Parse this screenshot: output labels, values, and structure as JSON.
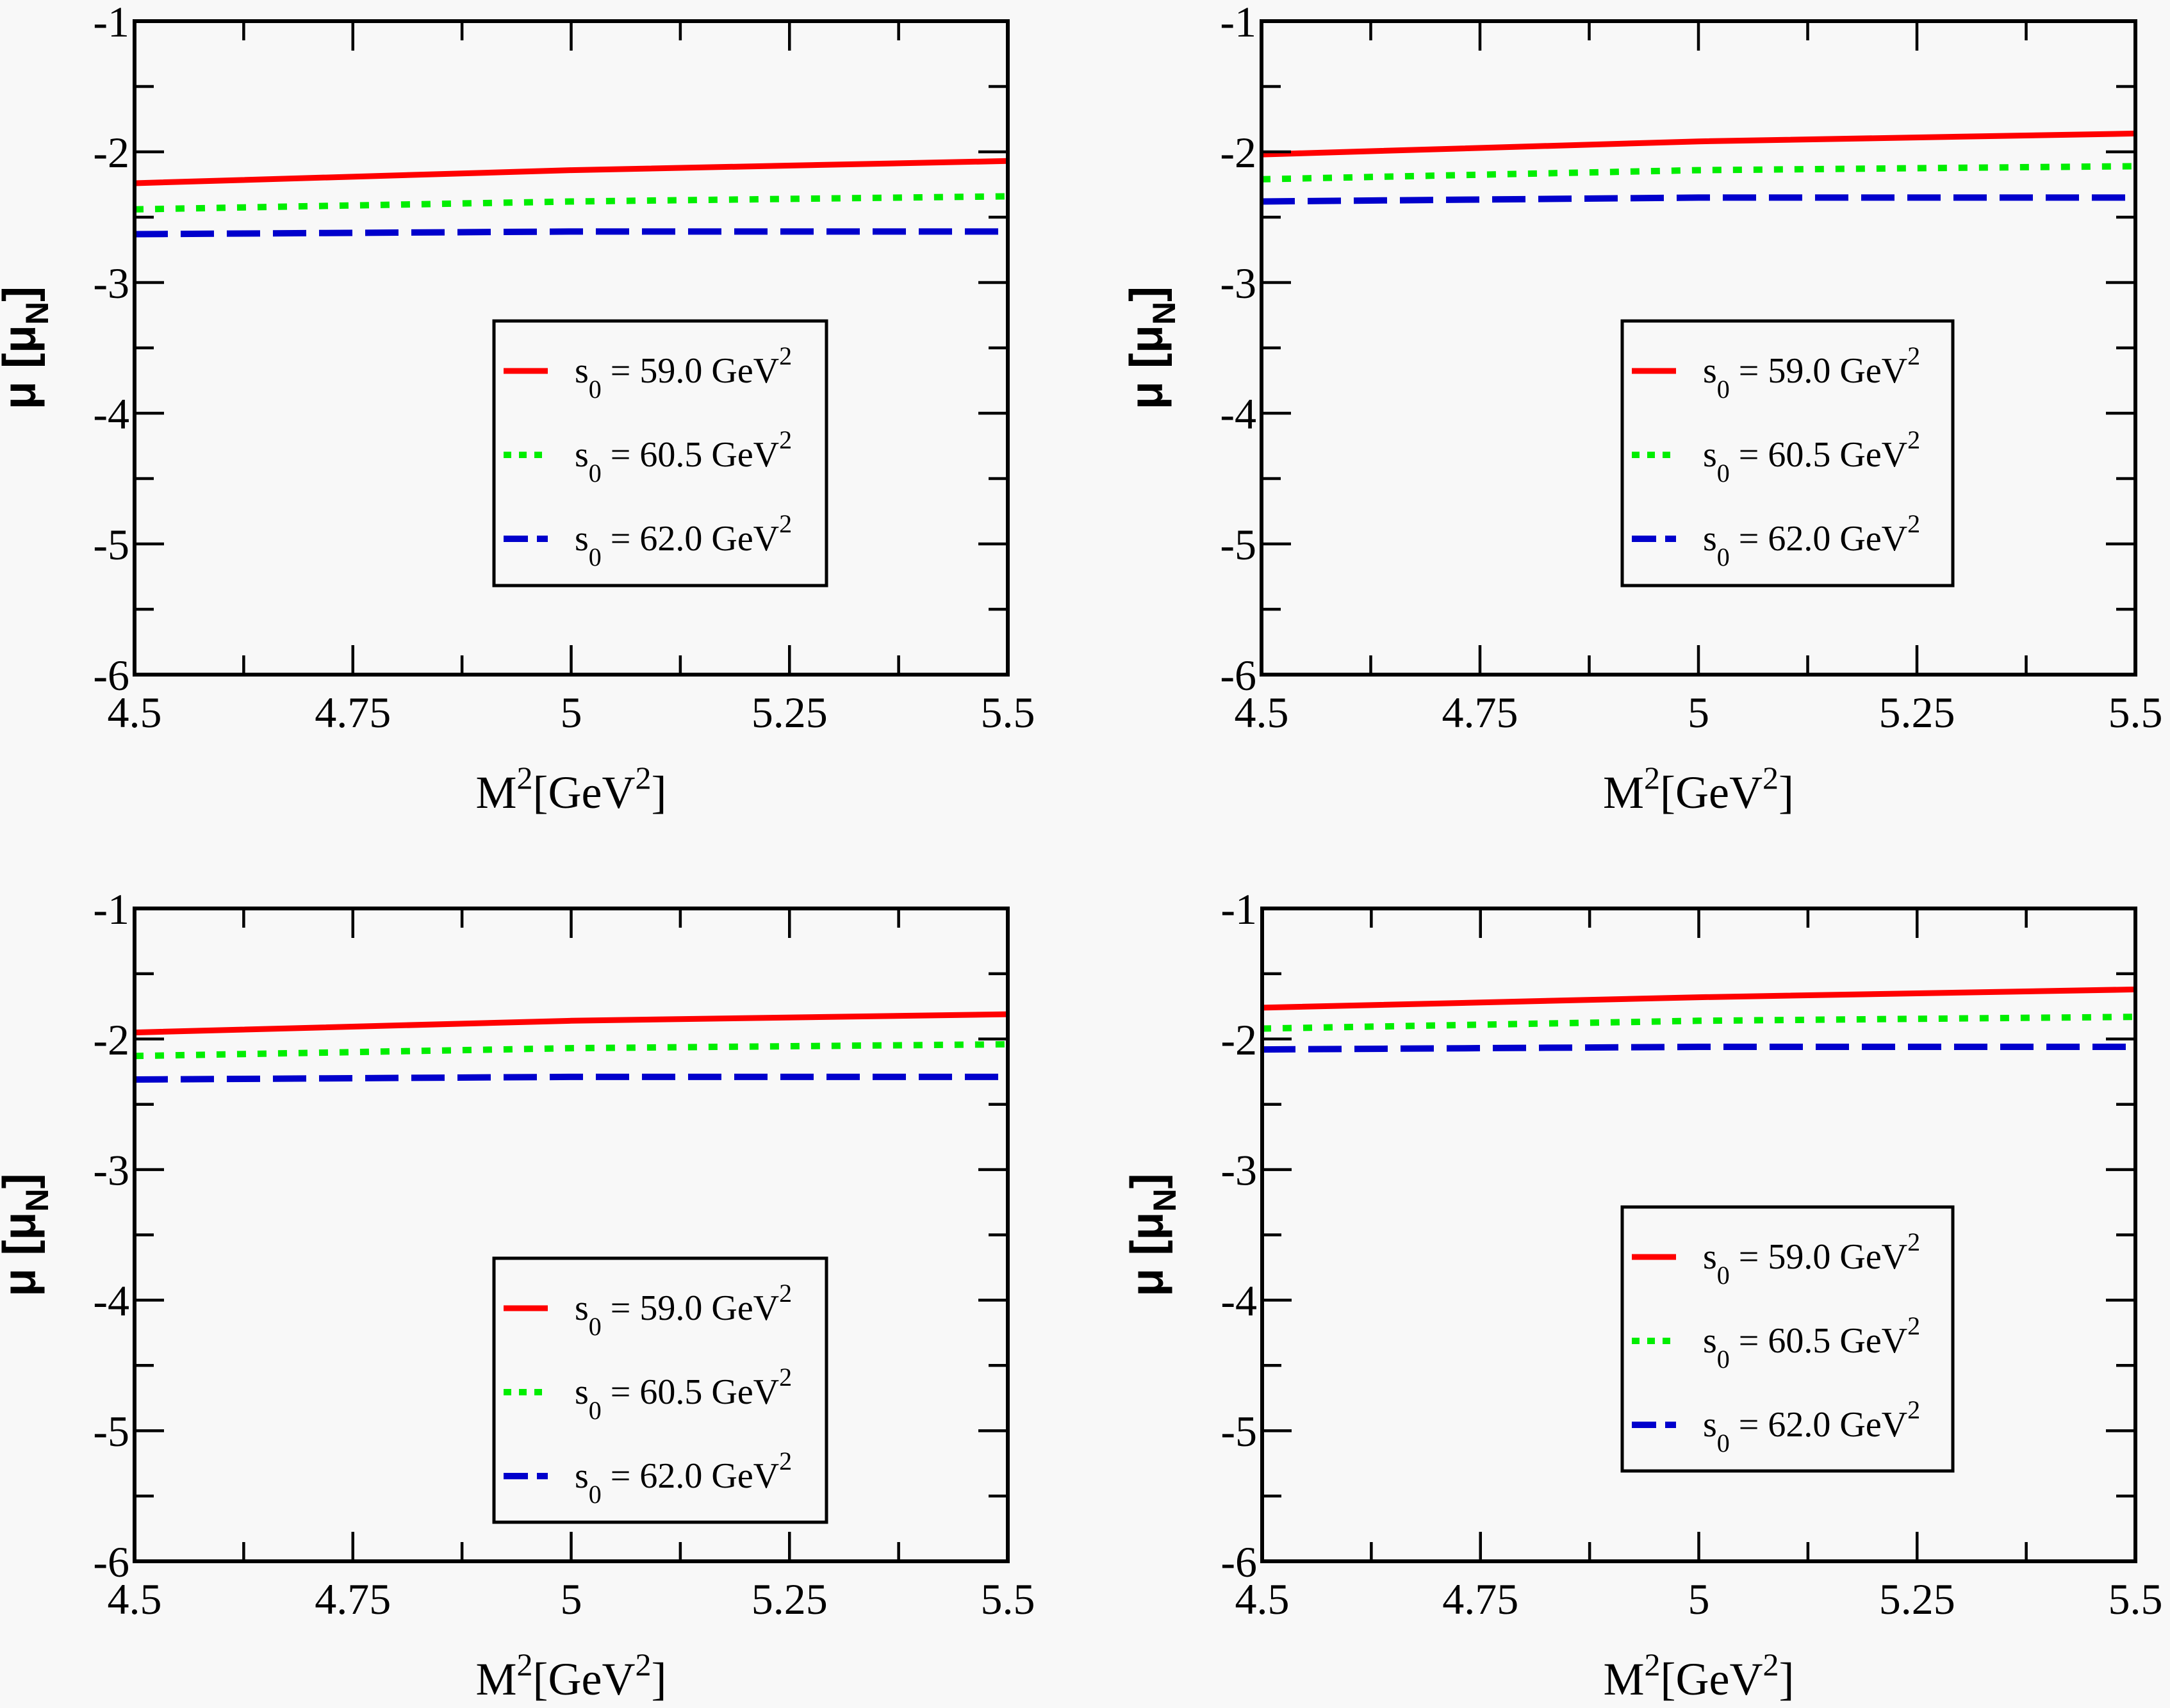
{
  "chart_data": [
    {
      "type": "line",
      "panel": "top-left",
      "xlabel": {
        "base": "M",
        "sup1": "2",
        "mid": "[GeV",
        "sup2": "2",
        "end": "]"
      },
      "ylabel": {
        "base": "μ [μ",
        "sub": "N",
        "end": "]"
      },
      "xlim": [
        4.5,
        5.5
      ],
      "ylim": [
        -6,
        -1
      ],
      "x_ticks": [
        4.5,
        4.75,
        5,
        5.25,
        5.5
      ],
      "x_tick_labels": [
        "4.5",
        "4.75",
        "5",
        "5.25",
        "5.5"
      ],
      "y_ticks": [
        -6,
        -5,
        -4,
        -3,
        -2,
        -1
      ],
      "y_tick_labels": [
        "-6",
        "-5",
        "-4",
        "-3",
        "-2",
        "-1"
      ],
      "grid": false,
      "legend_placement": "center-right",
      "x": [
        4.5,
        5.0,
        5.5
      ],
      "series": [
        {
          "name": "s0 = 59.0 GeV2",
          "label": {
            "s": "s",
            "sub": "0",
            "eq": " = 59.0 GeV",
            "sup": "2"
          },
          "values": [
            -2.24,
            -2.14,
            -2.07
          ],
          "color": "#ff0000",
          "style": "solid"
        },
        {
          "name": "s0 = 60.5 GeV2",
          "label": {
            "s": "s",
            "sub": "0",
            "eq": " = 60.5 GeV",
            "sup": "2"
          },
          "values": [
            -2.44,
            -2.38,
            -2.34
          ],
          "color": "#00ee00",
          "style": "dotted"
        },
        {
          "name": "s0 = 62.0 GeV2",
          "label": {
            "s": "s",
            "sub": "0",
            "eq": " = 62.0 GeV",
            "sup": "2"
          },
          "values": [
            -2.63,
            -2.61,
            -2.61
          ],
          "color": "#0000cc",
          "style": "dashed"
        }
      ]
    },
    {
      "type": "line",
      "panel": "top-right",
      "xlabel": {
        "base": "M",
        "sup1": "2",
        "mid": "[GeV",
        "sup2": "2",
        "end": "]"
      },
      "ylabel": {
        "base": "μ [μ",
        "sub": "N",
        "end": "]"
      },
      "xlim": [
        4.5,
        5.5
      ],
      "ylim": [
        -6,
        -1
      ],
      "x_ticks": [
        4.5,
        4.75,
        5,
        5.25,
        5.5
      ],
      "x_tick_labels": [
        "4.5",
        "4.75",
        "5",
        "5.25",
        "5.5"
      ],
      "y_ticks": [
        -6,
        -5,
        -4,
        -3,
        -2,
        -1
      ],
      "y_tick_labels": [
        "-6",
        "-5",
        "-4",
        "-3",
        "-2",
        "-1"
      ],
      "grid": false,
      "legend_placement": "center-right",
      "x": [
        4.5,
        5.0,
        5.5
      ],
      "series": [
        {
          "name": "s0 = 59.0 GeV2",
          "label": {
            "s": "s",
            "sub": "0",
            "eq": " = 59.0 GeV",
            "sup": "2"
          },
          "values": [
            -2.02,
            -1.92,
            -1.86
          ],
          "color": "#ff0000",
          "style": "solid"
        },
        {
          "name": "s0 = 60.5 GeV2",
          "label": {
            "s": "s",
            "sub": "0",
            "eq": " = 60.5 GeV",
            "sup": "2"
          },
          "values": [
            -2.21,
            -2.14,
            -2.11
          ],
          "color": "#00ee00",
          "style": "dotted"
        },
        {
          "name": "s0 = 62.0 GeV2",
          "label": {
            "s": "s",
            "sub": "0",
            "eq": " = 62.0 GeV",
            "sup": "2"
          },
          "values": [
            -2.38,
            -2.35,
            -2.35
          ],
          "color": "#0000cc",
          "style": "dashed"
        }
      ]
    },
    {
      "type": "line",
      "panel": "bottom-left",
      "xlabel": {
        "base": "M",
        "sup1": "2",
        "mid": "[GeV",
        "sup2": "2",
        "end": "]"
      },
      "ylabel": {
        "base": "μ [μ",
        "sub": "N",
        "end": "]"
      },
      "xlim": [
        4.5,
        5.5
      ],
      "ylim": [
        -6,
        -1
      ],
      "x_ticks": [
        4.5,
        4.75,
        5,
        5.25,
        5.5
      ],
      "x_tick_labels": [
        "4.5",
        "4.75",
        "5",
        "5.25",
        "5.5"
      ],
      "y_ticks": [
        -6,
        -5,
        -4,
        -3,
        -2,
        -1
      ],
      "y_tick_labels": [
        "-6",
        "-5",
        "-4",
        "-3",
        "-2",
        "-1"
      ],
      "grid": false,
      "legend_placement": "bottom-right",
      "x": [
        4.5,
        5.0,
        5.5
      ],
      "series": [
        {
          "name": "s0 = 59.0 GeV2",
          "label": {
            "s": "s",
            "sub": "0",
            "eq": " = 59.0 GeV",
            "sup": "2"
          },
          "values": [
            -1.95,
            -1.86,
            -1.81
          ],
          "color": "#ff0000",
          "style": "solid"
        },
        {
          "name": "s0 = 60.5 GeV2",
          "label": {
            "s": "s",
            "sub": "0",
            "eq": " = 60.5 GeV",
            "sup": "2"
          },
          "values": [
            -2.13,
            -2.07,
            -2.04
          ],
          "color": "#00ee00",
          "style": "dotted"
        },
        {
          "name": "s0 = 62.0 GeV2",
          "label": {
            "s": "s",
            "sub": "0",
            "eq": " = 62.0 GeV",
            "sup": "2"
          },
          "values": [
            -2.31,
            -2.29,
            -2.29
          ],
          "color": "#0000cc",
          "style": "dashed"
        }
      ]
    },
    {
      "type": "line",
      "panel": "bottom-right",
      "xlabel": {
        "base": "M",
        "sup1": "2",
        "mid": "[GeV",
        "sup2": "2",
        "end": "]"
      },
      "ylabel": {
        "base": "μ [μ",
        "sub": "N",
        "end": "]"
      },
      "xlim": [
        4.5,
        5.5
      ],
      "ylim": [
        -6,
        -1
      ],
      "x_ticks": [
        4.5,
        4.75,
        5,
        5.25,
        5.5
      ],
      "x_tick_labels": [
        "4.5",
        "4.75",
        "5",
        "5.25",
        "5.5"
      ],
      "y_ticks": [
        -6,
        -5,
        -4,
        -3,
        -2,
        -1
      ],
      "y_tick_labels": [
        "-6",
        "-5",
        "-4",
        "-3",
        "-2",
        "-1"
      ],
      "grid": false,
      "legend_placement": "center-right",
      "x": [
        4.5,
        5.0,
        5.5
      ],
      "series": [
        {
          "name": "s0 = 59.0 GeV2",
          "label": {
            "s": "s",
            "sub": "0",
            "eq": " = 59.0 GeV",
            "sup": "2"
          },
          "values": [
            -1.76,
            -1.68,
            -1.62
          ],
          "color": "#ff0000",
          "style": "solid"
        },
        {
          "name": "s0 = 60.5 GeV2",
          "label": {
            "s": "s",
            "sub": "0",
            "eq": " = 60.5 GeV",
            "sup": "2"
          },
          "values": [
            -1.92,
            -1.86,
            -1.83
          ],
          "color": "#00ee00",
          "style": "dotted"
        },
        {
          "name": "s0 = 62.0 GeV2",
          "label": {
            "s": "s",
            "sub": "0",
            "eq": " = 62.0 GeV",
            "sup": "2"
          },
          "values": [
            -2.08,
            -2.06,
            -2.06
          ],
          "color": "#0000cc",
          "style": "dashed"
        }
      ]
    }
  ]
}
